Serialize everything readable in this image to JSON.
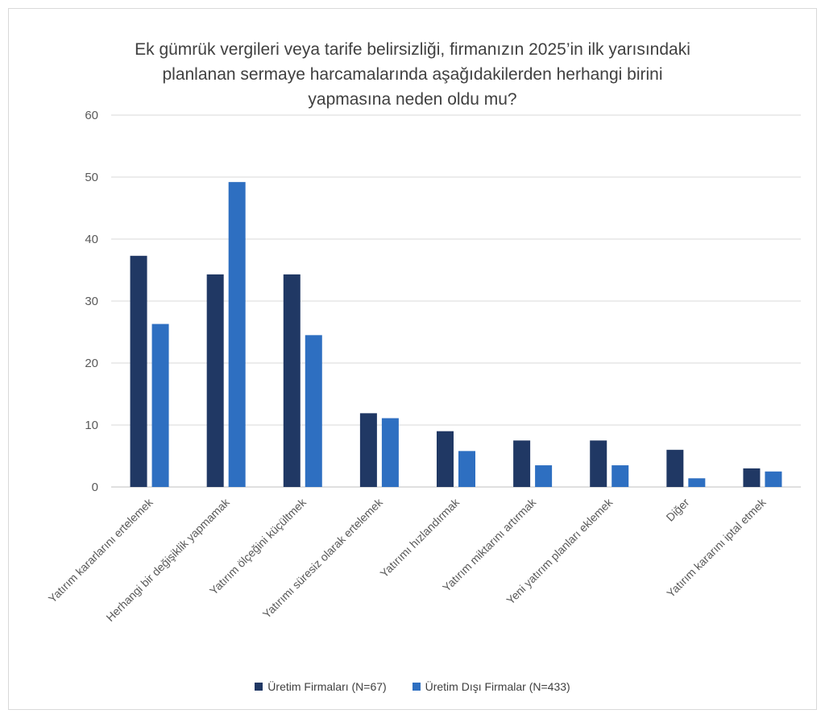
{
  "chart_data": {
    "type": "bar",
    "title_lines": [
      "Ek gümrük vergileri veya tarife belirsizliği, firmanızın 2025’in ilk yarısındaki",
      "planlanan sermaye harcamalarında aşağıdakilerden herhangi birini",
      "yapmasına neden oldu mu?"
    ],
    "categories": [
      "Yatırım kararlarını ertelemek",
      "Herhangi bir değişiklik yapmamak",
      "Yatırım ölçeğini küçültmek",
      "Yatırımı süresiz olarak ertelemek",
      "Yatırımı hızlandırmak",
      "Yatırım miktarını artırmak",
      "Yeni yatırım planları eklemek",
      "Diğer",
      "Yatırım kararını iptal etmek"
    ],
    "series": [
      {
        "name": "Üretim Firmaları (N=67)",
        "color": "#203864",
        "values": [
          37.3,
          34.3,
          34.3,
          11.9,
          9.0,
          7.5,
          7.5,
          6.0,
          3.0
        ]
      },
      {
        "name": "Üretim Dışı Firmalar (N=433)",
        "color": "#2e6fc1",
        "values": [
          26.3,
          49.2,
          24.5,
          11.1,
          5.8,
          3.5,
          3.5,
          1.4,
          2.5
        ]
      }
    ],
    "ylim": [
      0,
      60
    ],
    "yticks": [
      "0",
      "10",
      "20",
      "30",
      "40",
      "50",
      "60"
    ],
    "grid": true,
    "legend_position": "bottom"
  }
}
